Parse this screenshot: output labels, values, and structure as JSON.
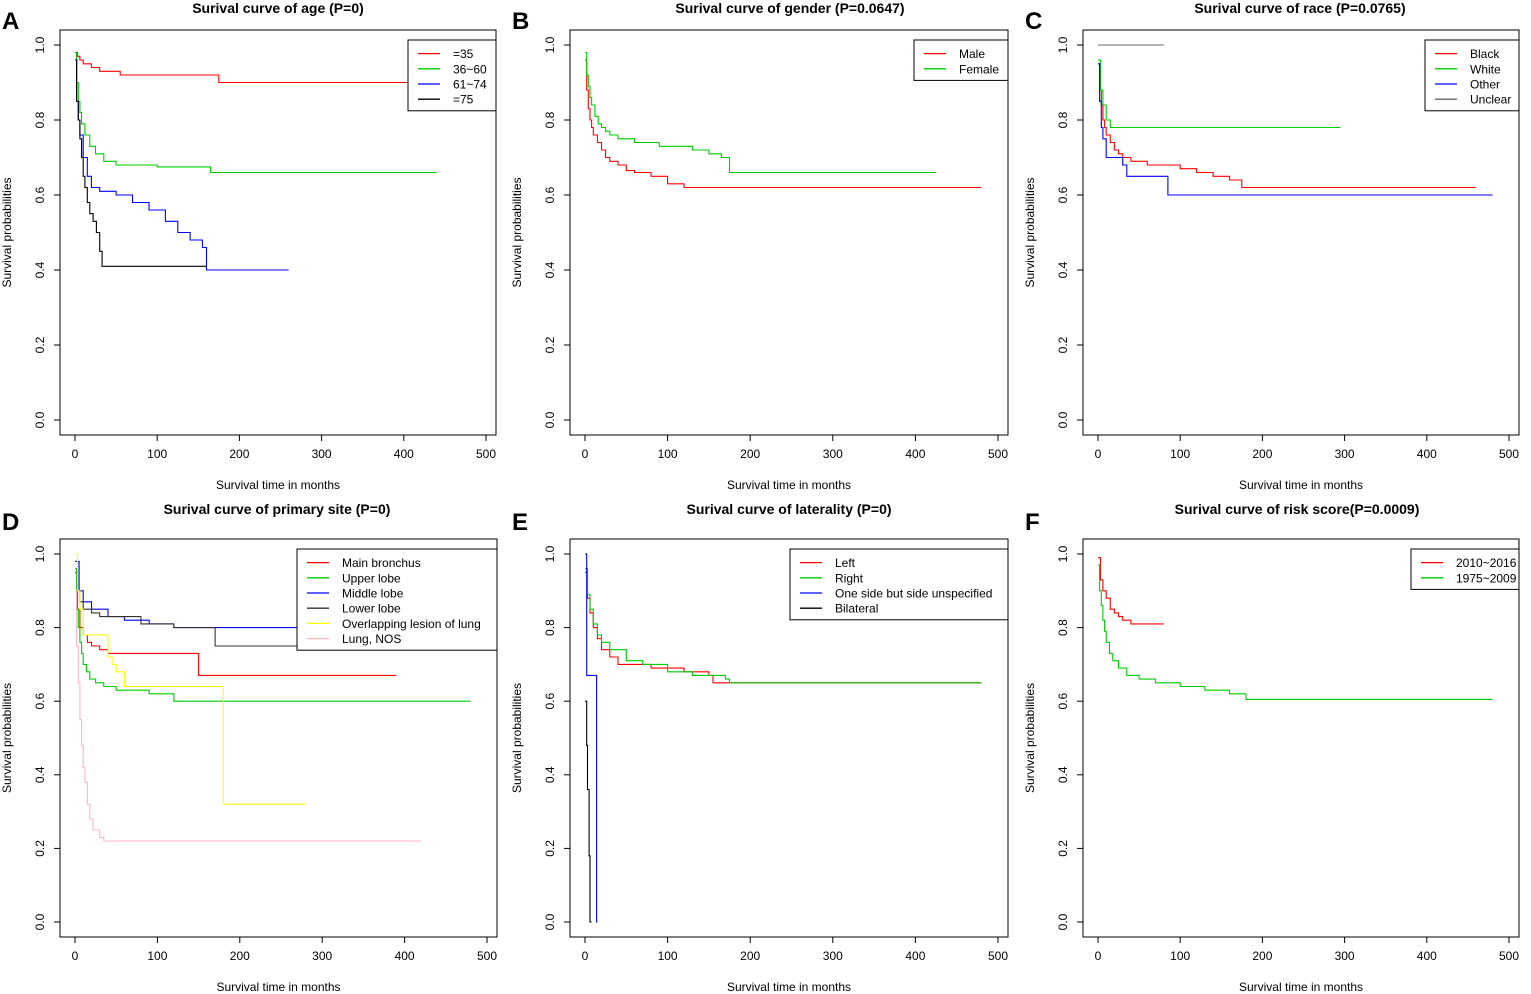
{
  "figure": {
    "axis_label_x": "Survival time in months",
    "axis_label_y": "Survival probabilities"
  },
  "chart_data": [
    {
      "panel": "A",
      "type": "line",
      "step": true,
      "title": "Surival curve of age (P=0)",
      "xlabel": "Survival time in months",
      "ylabel": "Survival probabilities",
      "xlim": [
        0,
        500
      ],
      "ylim": [
        0,
        1.0
      ],
      "xticks": [
        0,
        100,
        200,
        300,
        400,
        500
      ],
      "yticks": [
        0.0,
        0.2,
        0.4,
        0.6,
        0.8,
        1.0
      ],
      "legend_position": "top-right",
      "series": [
        {
          "name": "=35",
          "color": "#ff0000",
          "x": [
            0,
            3,
            6,
            10,
            20,
            30,
            55,
            90,
            100,
            175,
            200,
            300,
            400,
            440
          ],
          "y": [
            0.98,
            0.97,
            0.96,
            0.95,
            0.94,
            0.93,
            0.92,
            0.92,
            0.92,
            0.9,
            0.9,
            0.9,
            0.9,
            0.9
          ]
        },
        {
          "name": "36~60",
          "color": "#00cc00",
          "x": [
            0,
            2,
            4,
            6,
            8,
            12,
            18,
            25,
            35,
            50,
            70,
            100,
            165,
            200,
            300,
            440
          ],
          "y": [
            0.98,
            0.9,
            0.85,
            0.82,
            0.79,
            0.76,
            0.73,
            0.71,
            0.69,
            0.68,
            0.68,
            0.675,
            0.66,
            0.66,
            0.66,
            0.66
          ]
        },
        {
          "name": "61~74",
          "color": "#0000ff",
          "x": [
            0,
            2,
            4,
            6,
            10,
            15,
            20,
            30,
            50,
            70,
            90,
            110,
            125,
            140,
            155,
            160,
            260
          ],
          "y": [
            0.96,
            0.85,
            0.8,
            0.76,
            0.7,
            0.65,
            0.62,
            0.61,
            0.6,
            0.58,
            0.56,
            0.53,
            0.5,
            0.48,
            0.46,
            0.4,
            0.4
          ]
        },
        {
          "name": "=75",
          "color": "#000000",
          "x": [
            0,
            2,
            4,
            6,
            8,
            10,
            12,
            15,
            18,
            22,
            26,
            30,
            33,
            160
          ],
          "y": [
            0.96,
            0.85,
            0.8,
            0.75,
            0.7,
            0.65,
            0.62,
            0.58,
            0.55,
            0.53,
            0.5,
            0.45,
            0.41,
            0.41
          ]
        }
      ]
    },
    {
      "panel": "B",
      "type": "line",
      "step": true,
      "title": "Surival curve of gender (P=0.0647)",
      "xlabel": "Survival time in months",
      "ylabel": "Survival probabilities",
      "xlim": [
        0,
        500
      ],
      "ylim": [
        0,
        1.0
      ],
      "xticks": [
        0,
        100,
        200,
        300,
        400,
        500
      ],
      "yticks": [
        0.0,
        0.2,
        0.4,
        0.6,
        0.8,
        1.0
      ],
      "legend_position": "top-right",
      "series": [
        {
          "name": "Male",
          "color": "#ff0000",
          "x": [
            0,
            2,
            4,
            6,
            8,
            10,
            15,
            20,
            25,
            30,
            40,
            50,
            60,
            80,
            100,
            120,
            200,
            300,
            480
          ],
          "y": [
            0.96,
            0.88,
            0.83,
            0.8,
            0.78,
            0.76,
            0.74,
            0.72,
            0.7,
            0.69,
            0.68,
            0.665,
            0.66,
            0.65,
            0.63,
            0.62,
            0.62,
            0.62,
            0.62
          ]
        },
        {
          "name": "Female",
          "color": "#00cc00",
          "x": [
            0,
            2,
            4,
            6,
            8,
            12,
            16,
            20,
            25,
            30,
            40,
            60,
            90,
            130,
            150,
            165,
            175,
            200,
            300,
            425
          ],
          "y": [
            0.98,
            0.92,
            0.89,
            0.86,
            0.84,
            0.81,
            0.79,
            0.78,
            0.77,
            0.76,
            0.75,
            0.74,
            0.73,
            0.72,
            0.71,
            0.7,
            0.66,
            0.66,
            0.66,
            0.66
          ]
        }
      ]
    },
    {
      "panel": "C",
      "type": "line",
      "step": true,
      "title": "Surival curve of race (P=0.0765)",
      "xlabel": "Survival time in months",
      "ylabel": "Survival probabilities",
      "xlim": [
        0,
        500
      ],
      "ylim": [
        0,
        1.0
      ],
      "xticks": [
        0,
        100,
        200,
        300,
        400,
        500
      ],
      "yticks": [
        0.0,
        0.2,
        0.4,
        0.6,
        0.8,
        1.0
      ],
      "legend_position": "top-right",
      "series": [
        {
          "name": "Black",
          "color": "#ff0000",
          "x": [
            0,
            2,
            4,
            6,
            8,
            10,
            15,
            20,
            25,
            30,
            40,
            60,
            80,
            100,
            120,
            140,
            160,
            175,
            300,
            460
          ],
          "y": [
            0.95,
            0.88,
            0.84,
            0.8,
            0.78,
            0.76,
            0.74,
            0.72,
            0.71,
            0.7,
            0.69,
            0.68,
            0.68,
            0.67,
            0.66,
            0.65,
            0.64,
            0.62,
            0.62,
            0.62
          ]
        },
        {
          "name": "White",
          "color": "#00cc00",
          "x": [
            0,
            3,
            6,
            10,
            15,
            200,
            295
          ],
          "y": [
            0.96,
            0.88,
            0.84,
            0.8,
            0.78,
            0.78,
            0.78
          ]
        },
        {
          "name": "Other",
          "color": "#0000ff",
          "x": [
            0,
            2,
            4,
            6,
            10,
            30,
            35,
            85,
            300,
            480
          ],
          "y": [
            0.95,
            0.85,
            0.78,
            0.75,
            0.7,
            0.68,
            0.65,
            0.6,
            0.6,
            0.6
          ]
        },
        {
          "name": "Unclear",
          "color": "#666666",
          "x": [
            0,
            80
          ],
          "y": [
            1.0,
            1.0
          ]
        }
      ]
    },
    {
      "panel": "D",
      "type": "line",
      "step": true,
      "title": "Surival curve of primary site (P=0)",
      "xlabel": "Survival time in months",
      "ylabel": "Survival probabilities",
      "xlim": [
        0,
        500
      ],
      "ylim": [
        0,
        1.0
      ],
      "xticks": [
        0,
        100,
        200,
        300,
        400,
        500
      ],
      "yticks": [
        0.0,
        0.2,
        0.4,
        0.6,
        0.8,
        1.0
      ],
      "legend_position": "top-right",
      "series": [
        {
          "name": "Main bronchus",
          "color": "#ff0000",
          "x": [
            0,
            3,
            6,
            10,
            15,
            20,
            30,
            40,
            60,
            80,
            100,
            150,
            155,
            390
          ],
          "y": [
            0.95,
            0.85,
            0.8,
            0.78,
            0.76,
            0.75,
            0.74,
            0.73,
            0.73,
            0.73,
            0.73,
            0.67,
            0.67,
            0.67
          ]
        },
        {
          "name": "Upper lobe",
          "color": "#00cc00",
          "x": [
            0,
            2,
            4,
            6,
            8,
            10,
            14,
            18,
            25,
            35,
            50,
            70,
            90,
            120,
            200,
            300,
            480
          ],
          "y": [
            0.96,
            0.85,
            0.8,
            0.76,
            0.73,
            0.7,
            0.68,
            0.66,
            0.65,
            0.64,
            0.63,
            0.63,
            0.62,
            0.6,
            0.6,
            0.6,
            0.6
          ]
        },
        {
          "name": "Middle lobe",
          "color": "#0000ff",
          "x": [
            0,
            5,
            10,
            20,
            40,
            60,
            90,
            120,
            200,
            300,
            390
          ],
          "y": [
            0.98,
            0.9,
            0.87,
            0.85,
            0.83,
            0.82,
            0.81,
            0.8,
            0.8,
            0.8,
            0.8
          ]
        },
        {
          "name": "Lower lobe",
          "color": "#333333",
          "x": [
            0,
            3,
            6,
            10,
            20,
            30,
            50,
            80,
            120,
            170,
            250,
            420
          ],
          "y": [
            0.98,
            0.9,
            0.87,
            0.85,
            0.84,
            0.83,
            0.83,
            0.81,
            0.8,
            0.75,
            0.75,
            0.75
          ]
        },
        {
          "name": "Overlapping lesion of lung",
          "color": "#ffff00",
          "x": [
            0,
            3,
            6,
            10,
            40,
            45,
            50,
            60,
            175,
            180,
            280
          ],
          "y": [
            1.0,
            0.9,
            0.85,
            0.78,
            0.72,
            0.7,
            0.68,
            0.64,
            0.64,
            0.32,
            0.32
          ]
        },
        {
          "name": "Lung, NOS",
          "color": "#ffb6c1",
          "x": [
            0,
            2,
            4,
            6,
            8,
            10,
            12,
            15,
            18,
            22,
            30,
            35,
            40,
            100,
            200,
            300,
            420
          ],
          "y": [
            0.9,
            0.75,
            0.65,
            0.55,
            0.48,
            0.42,
            0.38,
            0.32,
            0.28,
            0.25,
            0.23,
            0.22,
            0.22,
            0.22,
            0.22,
            0.22,
            0.22
          ]
        }
      ]
    },
    {
      "panel": "E",
      "type": "line",
      "step": true,
      "title": "Surival curve of laterality (P=0)",
      "xlabel": "Survival time in months",
      "ylabel": "Survival probabilities",
      "xlim": [
        0,
        500
      ],
      "ylim": [
        0,
        1.0
      ],
      "xticks": [
        0,
        100,
        200,
        300,
        400,
        500
      ],
      "yticks": [
        0.0,
        0.2,
        0.4,
        0.6,
        0.8,
        1.0
      ],
      "legend_position": "top-right",
      "series": [
        {
          "name": "Left",
          "color": "#ff0000",
          "x": [
            0,
            3,
            6,
            10,
            15,
            20,
            30,
            40,
            60,
            80,
            100,
            120,
            150,
            155,
            480
          ],
          "y": [
            0.95,
            0.88,
            0.84,
            0.8,
            0.77,
            0.74,
            0.72,
            0.7,
            0.7,
            0.69,
            0.69,
            0.68,
            0.67,
            0.65,
            0.65
          ]
        },
        {
          "name": "Right",
          "color": "#00cc00",
          "x": [
            0,
            3,
            6,
            10,
            15,
            20,
            30,
            50,
            70,
            100,
            130,
            170,
            175,
            200,
            480
          ],
          "y": [
            0.96,
            0.89,
            0.85,
            0.81,
            0.78,
            0.76,
            0.74,
            0.71,
            0.7,
            0.68,
            0.67,
            0.66,
            0.65,
            0.65,
            0.65
          ]
        },
        {
          "name": "One side but side unspecified",
          "color": "#0000ff",
          "x": [
            0,
            2,
            4,
            10,
            14,
            15
          ],
          "y": [
            1.0,
            0.67,
            0.67,
            0.67,
            0.0,
            0.0
          ]
        },
        {
          "name": "Bilateral",
          "color": "#000000",
          "x": [
            0,
            1,
            2,
            3,
            5,
            6,
            7,
            8
          ],
          "y": [
            0.6,
            0.6,
            0.48,
            0.36,
            0.18,
            0.0,
            0.0,
            0.0
          ]
        }
      ]
    },
    {
      "panel": "F",
      "type": "line",
      "step": true,
      "title": "Surival curve of risk score(P=0.0009)",
      "xlabel": "Survival time in months",
      "ylabel": "Survival probabilities",
      "xlim": [
        0,
        500
      ],
      "ylim": [
        0,
        1.0
      ],
      "xticks": [
        0,
        100,
        200,
        300,
        400,
        500
      ],
      "yticks": [
        0.0,
        0.2,
        0.4,
        0.6,
        0.8,
        1.0
      ],
      "legend_position": "top-right",
      "series": [
        {
          "name": "2010~2016",
          "color": "#ff0000",
          "x": [
            0,
            3,
            6,
            10,
            15,
            20,
            25,
            30,
            40,
            60,
            80
          ],
          "y": [
            0.99,
            0.93,
            0.9,
            0.88,
            0.85,
            0.84,
            0.83,
            0.82,
            0.81,
            0.81,
            0.81
          ]
        },
        {
          "name": "1975~2009",
          "color": "#00cc00",
          "x": [
            0,
            2,
            4,
            6,
            8,
            10,
            14,
            18,
            25,
            35,
            50,
            70,
            100,
            130,
            160,
            180,
            250,
            350,
            480
          ],
          "y": [
            0.97,
            0.9,
            0.86,
            0.82,
            0.79,
            0.76,
            0.73,
            0.71,
            0.69,
            0.67,
            0.66,
            0.65,
            0.64,
            0.63,
            0.62,
            0.605,
            0.605,
            0.605,
            0.605
          ]
        }
      ]
    }
  ]
}
